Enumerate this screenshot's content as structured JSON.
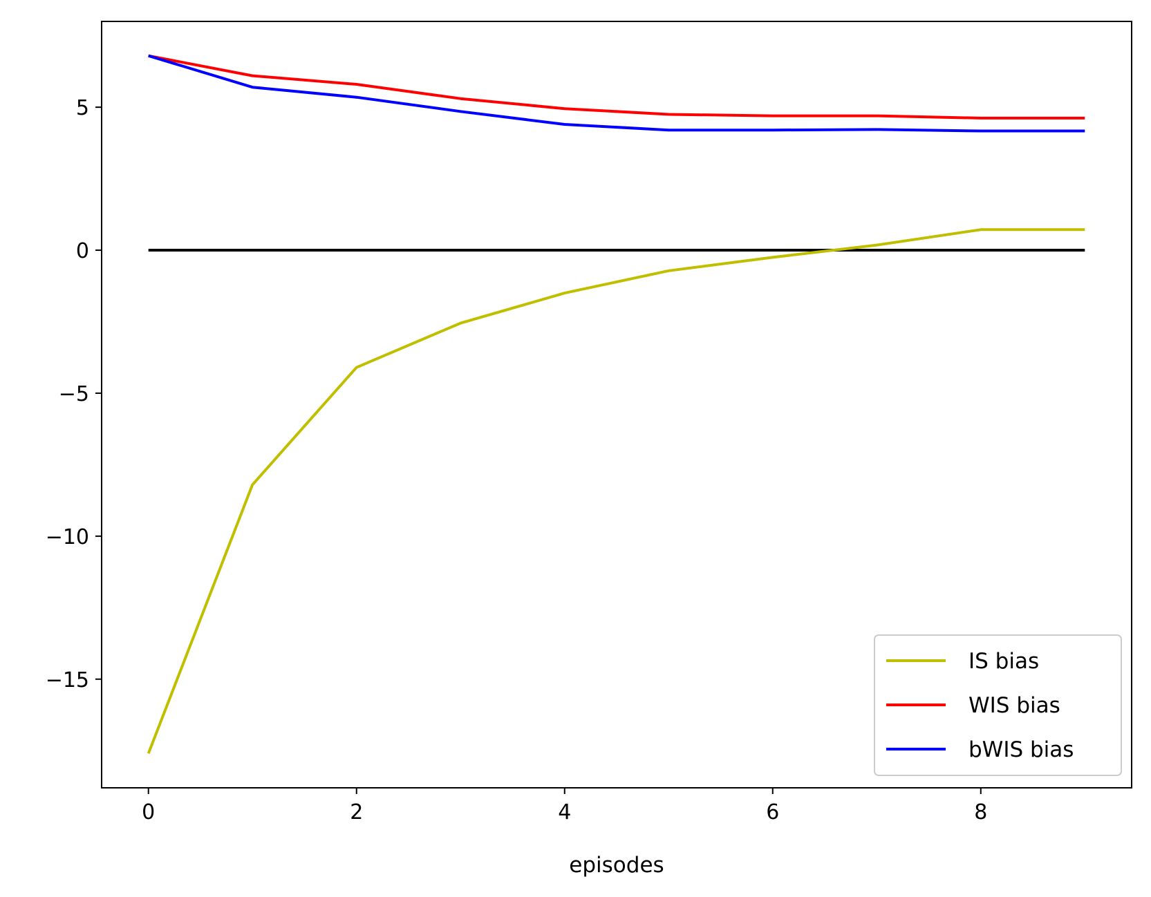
{
  "chart_data": {
    "type": "line",
    "title": "",
    "xlabel": "episodes",
    "ylabel": "",
    "xlim": [
      -0.45,
      9.45
    ],
    "ylim": [
      -18.8,
      8.0
    ],
    "xticks": [
      0,
      2,
      4,
      6,
      8
    ],
    "yticks": [
      5,
      0,
      -5,
      -10,
      -15
    ],
    "grid": false,
    "legend_position": "lower-right",
    "x": [
      0,
      1,
      2,
      3,
      4,
      5,
      6,
      7,
      8,
      9
    ],
    "reference_line": {
      "y": 0,
      "x_range": [
        0,
        9
      ],
      "color": "#000000"
    },
    "series": [
      {
        "name": "IS bias",
        "color": "#bfbf00",
        "values": [
          -17.6,
          -8.2,
          -4.1,
          -2.55,
          -1.5,
          -0.72,
          -0.25,
          0.18,
          0.72,
          0.72
        ]
      },
      {
        "name": "WIS bias",
        "color": "#ff0000",
        "values": [
          6.8,
          6.1,
          5.8,
          5.3,
          4.95,
          4.75,
          4.7,
          4.7,
          4.62,
          4.62
        ]
      },
      {
        "name": "bWIS bias",
        "color": "#0000ff",
        "values": [
          6.8,
          5.7,
          5.35,
          4.85,
          4.4,
          4.2,
          4.2,
          4.22,
          4.17,
          4.17
        ]
      }
    ]
  }
}
